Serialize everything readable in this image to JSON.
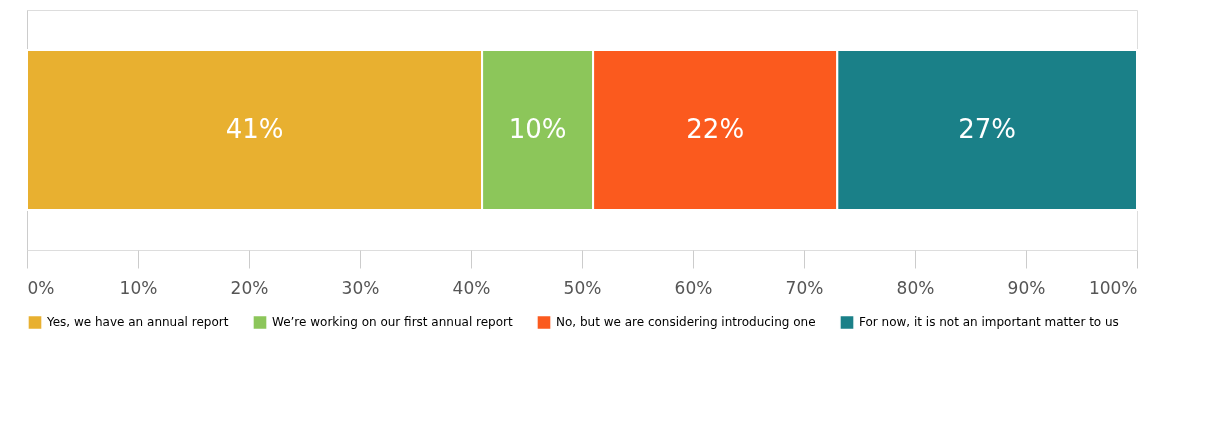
{
  "chart_data": {
    "type": "bar",
    "orientation": "horizontal",
    "stacked": true,
    "categories": [
      null
    ],
    "series": [
      {
        "name": "Yes, we have an annual report",
        "color": "#e8b030",
        "values": [
          41
        ],
        "value_labels": [
          "41%"
        ]
      },
      {
        "name": "We’re working on our first annual report",
        "color": "#8cc65a",
        "values": [
          10
        ],
        "value_labels": [
          "10%"
        ]
      },
      {
        "name": "No, but we are considering introducing one",
        "color": "#fb5a1e",
        "values": [
          22
        ],
        "value_labels": [
          "22%"
        ]
      },
      {
        "name": "For now, it is not an important matter to us",
        "color": "#1a8088",
        "values": [
          27
        ],
        "value_labels": [
          "27%"
        ]
      }
    ],
    "xlim": [
      0,
      100
    ],
    "xticks": [
      {
        "value": 0,
        "label": "0%"
      },
      {
        "value": 10,
        "label": "10%"
      },
      {
        "value": 20,
        "label": "20%"
      },
      {
        "value": 30,
        "label": "30%"
      },
      {
        "value": 40,
        "label": "40%"
      },
      {
        "value": 50,
        "label": "50%"
      },
      {
        "value": 60,
        "label": "60%"
      },
      {
        "value": 70,
        "label": "70%"
      },
      {
        "value": 80,
        "label": "80%"
      },
      {
        "value": 90,
        "label": "90%"
      },
      {
        "value": 100,
        "label": "100%"
      }
    ],
    "grid": false,
    "legend": "bottom"
  }
}
